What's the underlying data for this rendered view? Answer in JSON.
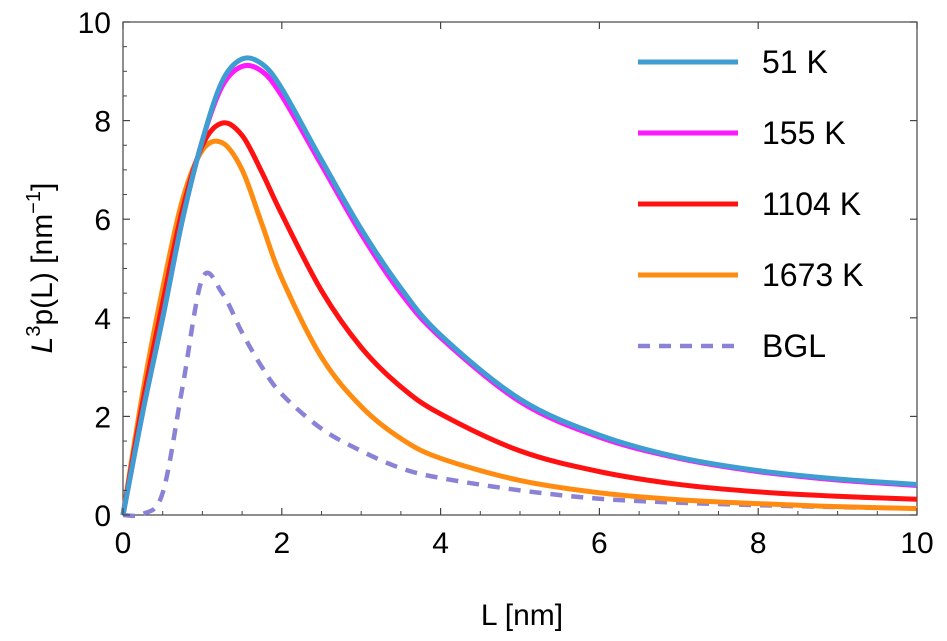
{
  "chart_data": {
    "type": "line",
    "title": "",
    "xlabel": "L [nm]",
    "ylabel": {
      "base": "L",
      "sup": "3",
      "rest": "p(L) [nm",
      "unit_sup": "−1",
      "close": "]"
    },
    "xlim": [
      0,
      10
    ],
    "ylim": [
      0,
      10
    ],
    "xticks": [
      0,
      2,
      4,
      6,
      8,
      10
    ],
    "yticks": [
      0,
      2,
      4,
      6,
      8,
      10
    ],
    "grid": false,
    "legend_position": "top-right",
    "x": [
      0,
      0.25,
      0.5,
      0.75,
      1.0,
      1.25,
      1.5,
      1.75,
      2.0,
      2.5,
      3.0,
      3.5,
      4.0,
      5.0,
      6.0,
      7.0,
      8.0,
      9.0,
      10.0
    ],
    "series": [
      {
        "name": "51 K",
        "color": "#3e9dd1",
        "dash": "solid",
        "values": [
          0,
          2.1,
          4.0,
          6.0,
          7.6,
          8.8,
          9.25,
          9.15,
          8.65,
          7.2,
          5.8,
          4.6,
          3.65,
          2.35,
          1.62,
          1.17,
          0.9,
          0.73,
          0.62
        ]
      },
      {
        "name": "155 K",
        "color": "#ff19ff",
        "dash": "solid",
        "values": [
          0,
          2.1,
          4.0,
          6.0,
          7.6,
          8.7,
          9.1,
          9.0,
          8.5,
          7.1,
          5.7,
          4.5,
          3.6,
          2.3,
          1.58,
          1.15,
          0.88,
          0.71,
          0.6
        ]
      },
      {
        "name": "1104 K",
        "color": "#ff1111",
        "dash": "solid",
        "values": [
          0,
          2.3,
          4.3,
          6.2,
          7.5,
          7.95,
          7.7,
          6.95,
          6.1,
          4.55,
          3.4,
          2.6,
          2.05,
          1.3,
          0.88,
          0.62,
          0.47,
          0.38,
          0.32
        ]
      },
      {
        "name": "1673 K",
        "color": "#ff8c11",
        "dash": "solid",
        "values": [
          0,
          2.5,
          4.6,
          6.4,
          7.4,
          7.55,
          7.0,
          5.9,
          4.8,
          3.2,
          2.2,
          1.55,
          1.15,
          0.7,
          0.45,
          0.31,
          0.23,
          0.17,
          0.13
        ]
      },
      {
        "name": "BGL",
        "color": "#8a82d6",
        "dash": "dashed",
        "values": [
          0,
          0.02,
          0.45,
          2.6,
          4.8,
          4.5,
          3.7,
          3.0,
          2.45,
          1.75,
          1.3,
          0.95,
          0.75,
          0.5,
          0.33,
          0.25,
          0.2,
          0.16,
          0.13
        ]
      }
    ]
  }
}
